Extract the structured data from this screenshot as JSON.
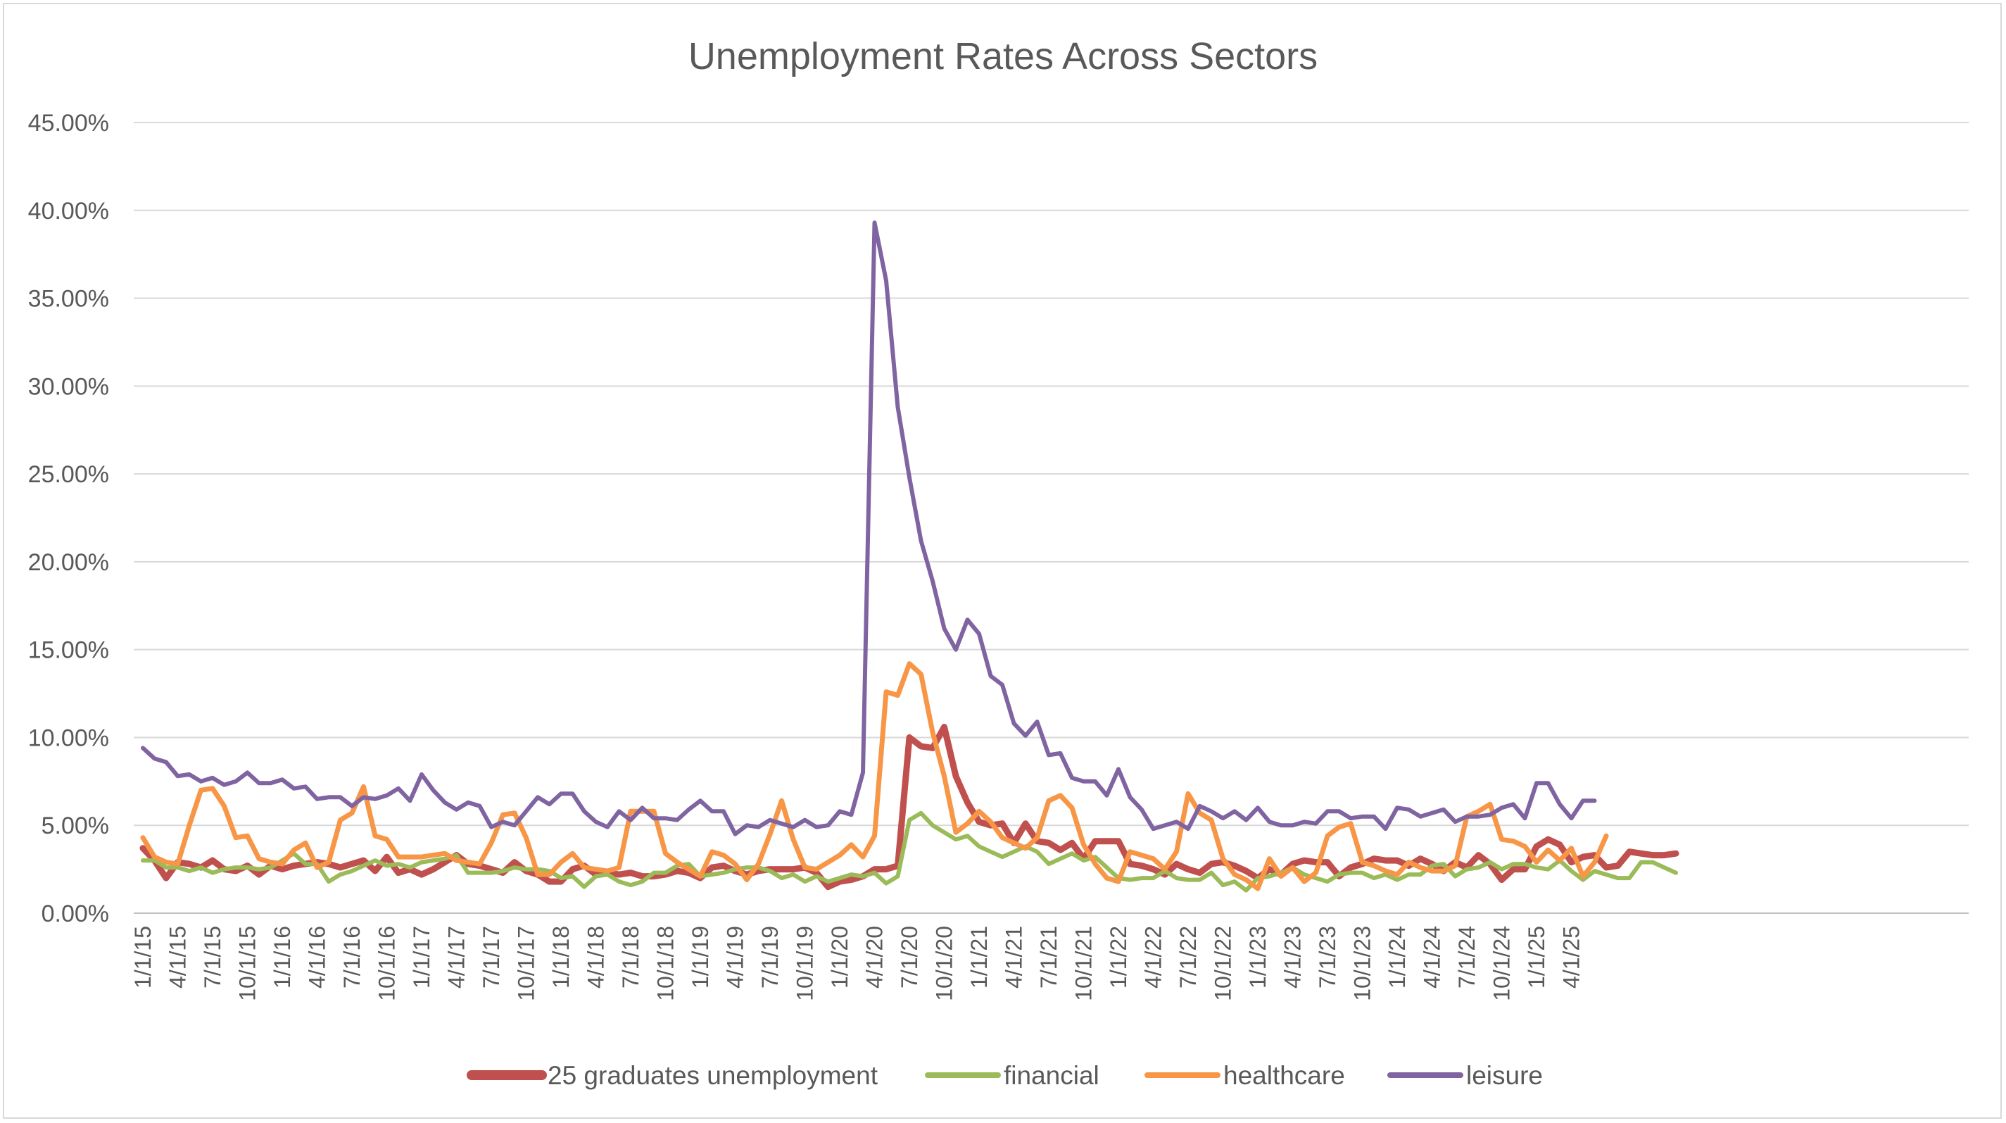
{
  "chart_data": {
    "type": "line",
    "title": "Unemployment Rates Across Sectors",
    "xlabel": "",
    "ylabel": "",
    "ylim": [
      0,
      45
    ],
    "y_ticks": [
      "0.00%",
      "5.00%",
      "10.00%",
      "15.00%",
      "20.00%",
      "25.00%",
      "30.00%",
      "35.00%",
      "40.00%",
      "45.00%"
    ],
    "x_tick_labels": [
      "1/1/15",
      "4/1/15",
      "7/1/15",
      "10/1/15",
      "1/1/16",
      "4/1/16",
      "7/1/16",
      "10/1/16",
      "1/1/17",
      "4/1/17",
      "7/1/17",
      "10/1/17",
      "1/1/18",
      "4/1/18",
      "7/1/18",
      "10/1/18",
      "1/1/19",
      "4/1/19",
      "7/1/19",
      "10/1/19",
      "1/1/20",
      "4/1/20",
      "7/1/20",
      "10/1/20",
      "1/1/21",
      "4/1/21",
      "7/1/21",
      "10/1/21",
      "1/1/22",
      "4/1/22",
      "7/1/22",
      "10/1/22",
      "1/1/23",
      "4/1/23",
      "7/1/23",
      "10/1/23",
      "1/1/24",
      "4/1/24",
      "7/1/24",
      "10/1/24",
      "1/1/25",
      "4/1/25"
    ],
    "x_start": "1/1/15",
    "x_frequency": "monthly",
    "grid": true,
    "legend_position": "bottom",
    "series": [
      {
        "name": "25 graduates unemployment",
        "color": "#c0504d",
        "values": [
          3.7,
          3.0,
          2.0,
          2.9,
          2.8,
          2.6,
          3.0,
          2.5,
          2.4,
          2.7,
          2.2,
          2.7,
          2.5,
          2.7,
          2.8,
          2.9,
          2.8,
          2.6,
          2.8,
          3.0,
          2.4,
          3.2,
          2.3,
          2.5,
          2.2,
          2.5,
          2.9,
          3.3,
          2.8,
          2.7,
          2.5,
          2.3,
          2.9,
          2.4,
          2.2,
          1.8,
          1.8,
          2.5,
          2.7,
          2.2,
          2.3,
          2.2,
          2.3,
          2.1,
          2.1,
          2.2,
          2.4,
          2.3,
          2.0,
          2.6,
          2.7,
          2.4,
          2.2,
          2.4,
          2.5,
          2.5,
          2.5,
          2.6,
          2.3,
          1.5,
          1.8,
          1.9,
          2.1,
          2.5,
          2.5,
          2.7,
          10.0,
          9.5,
          9.4,
          10.6,
          7.8,
          6.3,
          5.2,
          5.0,
          5.1,
          4.0,
          5.1,
          4.1,
          4.0,
          3.6,
          4.0,
          3.1,
          4.1,
          4.1,
          4.1,
          2.8,
          2.7,
          2.5,
          2.2,
          2.8,
          2.5,
          2.3,
          2.8,
          2.9,
          2.7,
          2.4,
          2.0,
          2.5,
          2.2,
          2.8,
          3.0,
          2.9,
          2.9,
          2.1,
          2.6,
          2.8,
          3.1,
          3.0,
          3.0,
          2.7,
          3.1,
          2.8,
          2.4,
          2.9,
          2.6,
          3.3,
          2.8,
          1.9,
          2.5,
          2.5,
          3.8,
          4.2,
          3.9,
          2.9,
          3.2,
          3.3,
          2.6,
          2.7,
          3.5,
          3.4,
          3.3,
          3.3,
          3.4
        ]
      },
      {
        "name": "financial",
        "color": "#9bbb59",
        "values": [
          3.0,
          3.0,
          2.6,
          2.6,
          2.4,
          2.6,
          2.3,
          2.5,
          2.6,
          2.6,
          2.5,
          2.6,
          3.0,
          3.4,
          2.8,
          2.8,
          1.8,
          2.2,
          2.4,
          2.7,
          3.0,
          2.7,
          2.8,
          2.6,
          2.9,
          3.0,
          3.1,
          3.3,
          2.3,
          2.3,
          2.3,
          2.4,
          2.6,
          2.5,
          2.5,
          2.4,
          2.0,
          2.1,
          1.5,
          2.1,
          2.2,
          1.8,
          1.6,
          1.8,
          2.3,
          2.3,
          2.7,
          2.8,
          2.1,
          2.2,
          2.3,
          2.5,
          2.6,
          2.6,
          2.4,
          2.0,
          2.2,
          1.8,
          2.1,
          1.8,
          2.0,
          2.2,
          2.1,
          2.3,
          1.7,
          2.1,
          5.3,
          5.7,
          5.0,
          4.6,
          4.2,
          4.4,
          3.8,
          3.5,
          3.2,
          3.5,
          3.8,
          3.5,
          2.8,
          3.1,
          3.4,
          3.0,
          3.2,
          2.6,
          2.0,
          1.9,
          2.0,
          2.0,
          2.4,
          2.0,
          1.9,
          1.9,
          2.3,
          1.6,
          1.8,
          1.3,
          2.0,
          2.1,
          2.3,
          2.6,
          2.2,
          2.0,
          1.8,
          2.2,
          2.3,
          2.3,
          2.0,
          2.2,
          1.9,
          2.2,
          2.2,
          2.7,
          2.8,
          2.1,
          2.5,
          2.6,
          2.9,
          2.5,
          2.8,
          2.8,
          2.6,
          2.5,
          3.0,
          2.4,
          1.9,
          2.4,
          2.2,
          2.0,
          2.0,
          2.9,
          2.9,
          2.6,
          2.3
        ]
      },
      {
        "name": "healthcare",
        "color": "#f79646",
        "values": [
          4.3,
          3.2,
          2.9,
          2.8,
          5.0,
          7.0,
          7.1,
          6.1,
          4.3,
          4.4,
          3.1,
          2.9,
          2.8,
          3.6,
          4.0,
          2.6,
          2.9,
          5.3,
          5.7,
          7.2,
          4.4,
          4.2,
          3.2,
          3.2,
          3.2,
          3.3,
          3.4,
          3.0,
          2.9,
          2.8,
          4.0,
          5.6,
          5.7,
          4.3,
          2.2,
          2.2,
          2.9,
          3.4,
          2.6,
          2.5,
          2.4,
          2.6,
          5.8,
          5.8,
          5.8,
          3.4,
          2.9,
          2.5,
          2.1,
          3.5,
          3.3,
          2.8,
          1.9,
          2.8,
          4.5,
          6.4,
          4.2,
          2.6,
          2.5,
          2.9,
          3.3,
          3.9,
          3.2,
          4.4,
          12.6,
          12.4,
          14.2,
          13.6,
          10.3,
          7.8,
          4.6,
          5.1,
          5.8,
          5.2,
          4.3,
          4.0,
          3.7,
          4.3,
          6.4,
          6.7,
          6.0,
          3.9,
          2.8,
          2.0,
          1.8,
          3.5,
          3.3,
          3.1,
          2.5,
          3.5,
          6.8,
          5.7,
          5.3,
          3.1,
          2.2,
          1.9,
          1.4,
          3.1,
          2.1,
          2.6,
          1.8,
          2.3,
          4.4,
          4.9,
          5.1,
          2.9,
          2.7,
          2.4,
          2.2,
          2.9,
          2.6,
          2.4,
          2.4,
          2.7,
          5.5,
          5.8,
          6.2,
          4.2,
          4.1,
          3.8,
          2.9,
          3.6,
          3.0,
          3.7,
          2.1,
          2.9,
          4.4
        ]
      },
      {
        "name": "leisure",
        "color": "#8064a2",
        "values": [
          9.4,
          8.8,
          8.6,
          7.8,
          7.9,
          7.5,
          7.7,
          7.3,
          7.5,
          8.0,
          7.4,
          7.4,
          7.6,
          7.1,
          7.2,
          6.5,
          6.6,
          6.6,
          6.1,
          6.6,
          6.5,
          6.7,
          7.1,
          6.4,
          7.9,
          7.0,
          6.3,
          5.9,
          6.3,
          6.1,
          4.9,
          5.2,
          5.0,
          5.8,
          6.6,
          6.2,
          6.8,
          6.8,
          5.8,
          5.2,
          4.9,
          5.8,
          5.3,
          6.0,
          5.4,
          5.4,
          5.3,
          5.9,
          6.4,
          5.8,
          5.8,
          4.5,
          5.0,
          4.9,
          5.3,
          5.1,
          4.9,
          5.3,
          4.9,
          5.0,
          5.8,
          5.6,
          8.0,
          39.3,
          36.0,
          28.8,
          24.8,
          21.2,
          18.9,
          16.2,
          15.0,
          16.7,
          15.9,
          13.5,
          13.0,
          10.8,
          10.1,
          10.9,
          9.0,
          9.1,
          7.7,
          7.5,
          7.5,
          6.7,
          8.2,
          6.6,
          5.9,
          4.8,
          5.0,
          5.2,
          4.8,
          6.1,
          5.8,
          5.4,
          5.8,
          5.3,
          6.0,
          5.2,
          5.0,
          5.0,
          5.2,
          5.1,
          5.8,
          5.8,
          5.4,
          5.5,
          5.5,
          4.8,
          6.0,
          5.9,
          5.5,
          5.7,
          5.9,
          5.2,
          5.5,
          5.5,
          5.6,
          6.0,
          6.2,
          5.4,
          7.4,
          7.4,
          6.2,
          5.4,
          6.4,
          6.4
        ]
      }
    ]
  }
}
